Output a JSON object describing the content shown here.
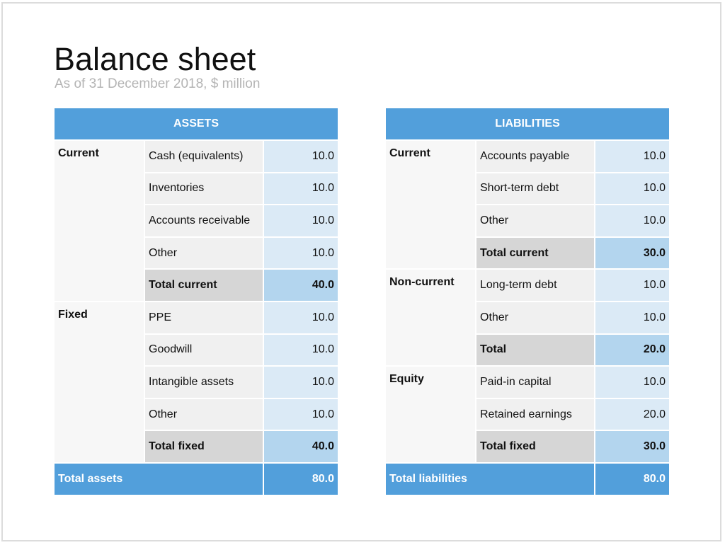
{
  "header": {
    "title": "Balance sheet",
    "subtitle": "As of 31 December 2018, $ million"
  },
  "tables": [
    {
      "heading": "ASSETS",
      "groups": [
        {
          "name": "Current",
          "rows": [
            {
              "label": "Cash (equivalents)",
              "value": "10.0"
            },
            {
              "label": "Inventories",
              "value": "10.0"
            },
            {
              "label": "Accounts receivable",
              "value": "10.0"
            },
            {
              "label": "Other",
              "value": "10.0"
            }
          ],
          "total": {
            "label": "Total current",
            "value": "40.0"
          }
        },
        {
          "name": "Fixed",
          "rows": [
            {
              "label": "PPE",
              "value": "10.0"
            },
            {
              "label": "Goodwill",
              "value": "10.0"
            },
            {
              "label": "Intangible assets",
              "value": "10.0"
            },
            {
              "label": "Other",
              "value": "10.0"
            }
          ],
          "total": {
            "label": "Total fixed",
            "value": "40.0"
          }
        }
      ],
      "grand_total": {
        "label": "Total assets",
        "value": "80.0"
      }
    },
    {
      "heading": "LIABILITIES",
      "groups": [
        {
          "name": "Current",
          "rows": [
            {
              "label": "Accounts payable",
              "value": "10.0"
            },
            {
              "label": "Short-term debt",
              "value": "10.0"
            },
            {
              "label": "Other",
              "value": "10.0"
            }
          ],
          "total": {
            "label": "Total current",
            "value": "30.0"
          }
        },
        {
          "name": "Non-current",
          "rows": [
            {
              "label": "Long-term debt",
              "value": "10.0"
            },
            {
              "label": "Other",
              "value": "10.0"
            }
          ],
          "total": {
            "label": "Total",
            "value": "20.0"
          }
        },
        {
          "name": "Equity",
          "rows": [
            {
              "label": "Paid-in capital",
              "value": "10.0"
            },
            {
              "label": "Retained earnings",
              "value": "20.0"
            }
          ],
          "total": {
            "label": "Total fixed",
            "value": "30.0"
          }
        }
      ],
      "grand_total": {
        "label": "Total liabilities",
        "value": "80.0"
      }
    }
  ]
}
